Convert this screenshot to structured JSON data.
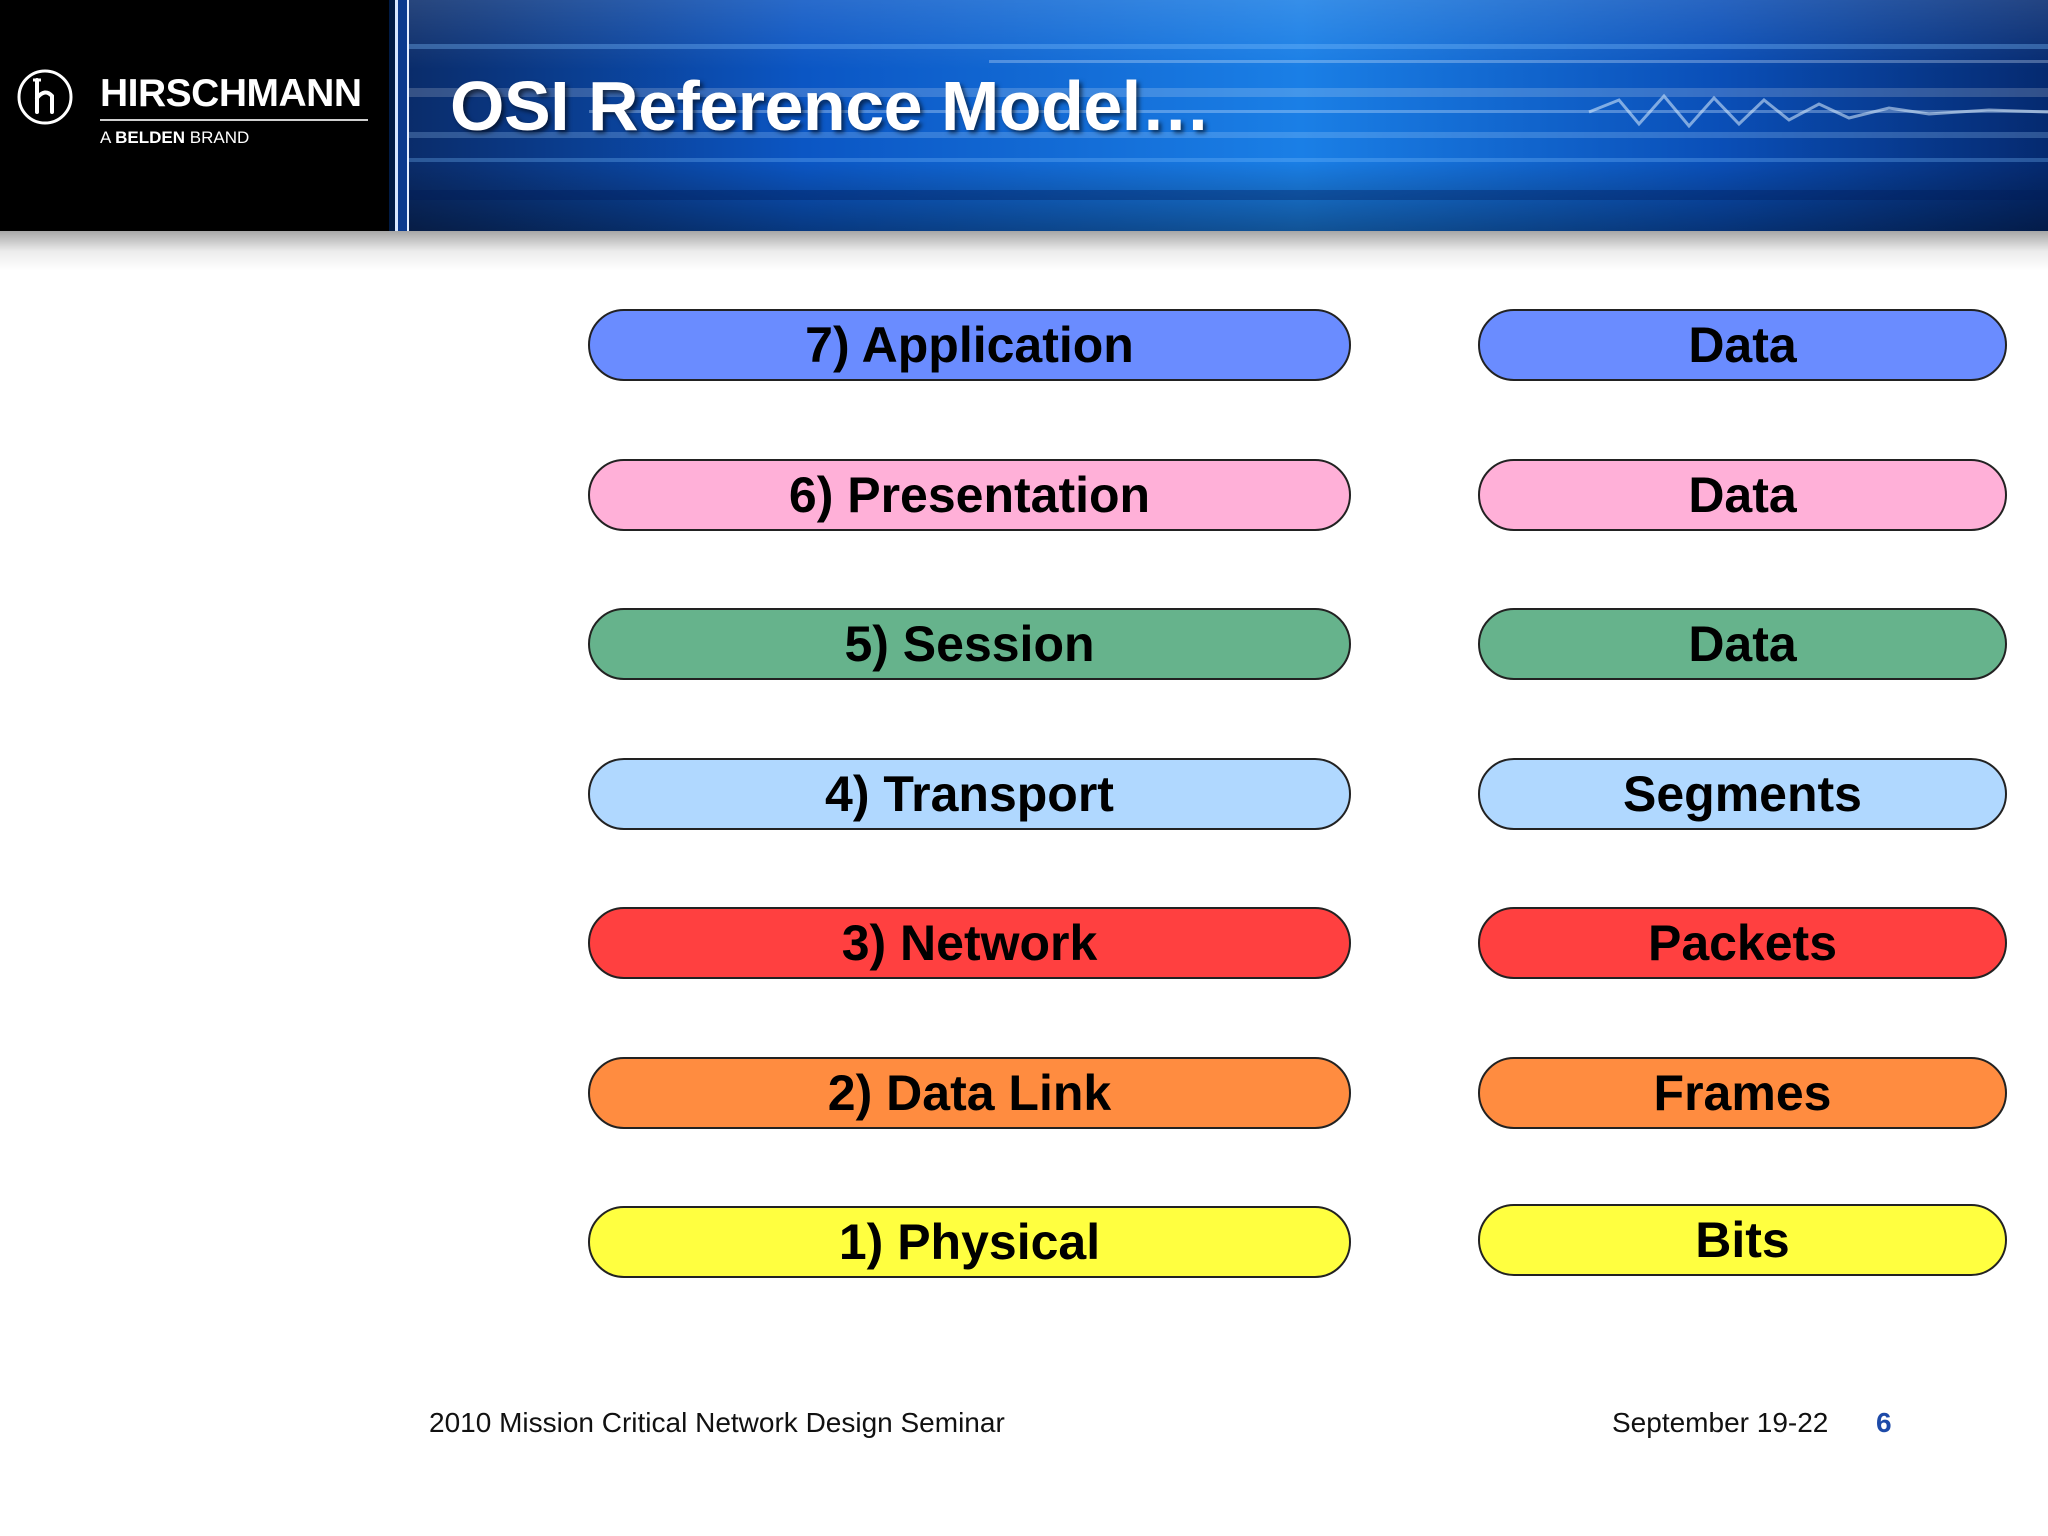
{
  "brand": {
    "name": "HIRSCHMANN",
    "tagline_prefix": "A ",
    "tagline_bold": "BELDEN",
    "tagline_suffix": " BRAND"
  },
  "title": "OSI Reference Model…",
  "rows": [
    {
      "layer": "7) Application",
      "unit": "Data",
      "color": "#6a8cff"
    },
    {
      "layer": "6) Presentation",
      "unit": "Data",
      "color": "#ffb0d8"
    },
    {
      "layer": "5) Session",
      "unit": "Data",
      "color": "#66b38c"
    },
    {
      "layer": "4) Transport",
      "unit": "Segments",
      "color": "#b0d8ff"
    },
    {
      "layer": "3) Network",
      "unit": "Packets",
      "color": "#ff4040"
    },
    {
      "layer": "2) Data Link",
      "unit": "Frames",
      "color": "#ff8c40"
    },
    {
      "layer": "1) Physical",
      "unit": "Bits",
      "color": "#ffff40"
    }
  ],
  "footer": {
    "seminar": "2010 Mission Critical Network Design Seminar",
    "date": "September 19-22",
    "page": "6"
  }
}
